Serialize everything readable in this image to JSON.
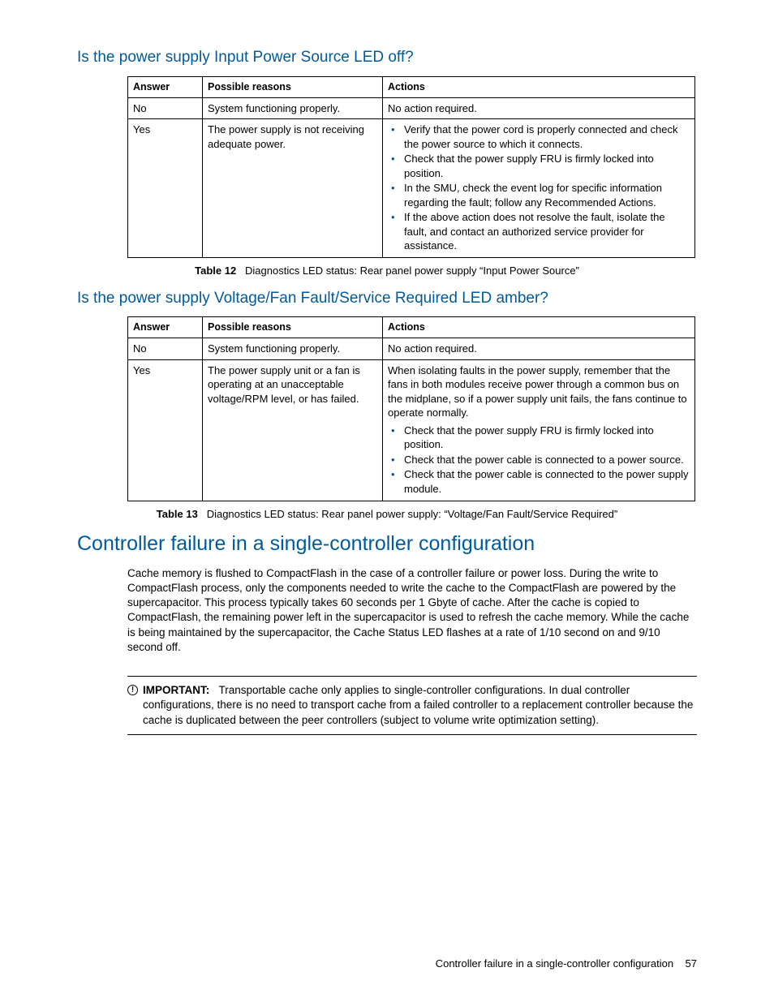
{
  "colors": {
    "heading": "#005a9c",
    "bullet": "#005a9c",
    "text": "#000000",
    "border": "#000000",
    "background": "#ffffff"
  },
  "section1": {
    "heading": "Is the power supply Input Power Source LED off?",
    "table": {
      "headers": [
        "Answer",
        "Possible reasons",
        "Actions"
      ],
      "rows": [
        {
          "answer": "No",
          "reasons": "System functioning properly.",
          "actions_text": "No action required."
        },
        {
          "answer": "Yes",
          "reasons": "The power supply is not receiving adequate power.",
          "actions_list": [
            "Verify that the power cord is properly connected and check the power source to which it connects.",
            "Check that the power supply FRU is firmly locked into position.",
            "In the SMU, check the event log for specific information regarding the fault; follow any Recommended Actions.",
            "If the above action does not resolve the fault, isolate the fault, and contact an authorized service provider for assistance."
          ]
        }
      ]
    },
    "caption_label": "Table 12",
    "caption_text": "Diagnostics LED status: Rear panel power supply “Input Power Source”"
  },
  "section2": {
    "heading": "Is the power supply Voltage/Fan Fault/Service Required LED amber?",
    "table": {
      "headers": [
        "Answer",
        "Possible reasons",
        "Actions"
      ],
      "rows": [
        {
          "answer": "No",
          "reasons": "System functioning properly.",
          "actions_text": "No action required."
        },
        {
          "answer": "Yes",
          "reasons": "The power supply unit or a fan is operating at an unacceptable voltage/RPM level, or has failed.",
          "actions_intro": "When isolating faults in the power supply, remember that the fans in both modules receive power through a common bus on the midplane, so if a power supply unit fails, the fans continue to operate normally.",
          "actions_list": [
            "Check that the power supply FRU is firmly locked into position.",
            "Check that the power cable is connected to a power source.",
            "Check that the power cable is connected to the power supply module."
          ]
        }
      ]
    },
    "caption_label": "Table 13",
    "caption_text": "Diagnostics LED status: Rear panel power supply: “Voltage/Fan Fault/Service Required”"
  },
  "section3": {
    "heading": "Controller failure in a single-controller configuration",
    "paragraph": "Cache memory is flushed to CompactFlash in the case of a controller failure or power loss. During the write to CompactFlash process, only the components needed to write the cache to the CompactFlash are powered by the supercapacitor. This process typically takes 60 seconds per 1 Gbyte of cache. After the cache is copied to CompactFlash, the remaining power left in the supercapacitor is used to refresh the cache memory. While the cache is being maintained by the supercapacitor, the Cache Status LED flashes at a rate of 1/10 second on and 9/10 second off.",
    "important_label": "IMPORTANT:",
    "important_text": "Transportable cache only applies to single-controller configurations. In dual controller configurations, there is no need to transport cache from a failed controller to a replacement controller because the cache is duplicated between the peer controllers (subject to volume write optimization setting)."
  },
  "footer": {
    "text": "Controller failure in a single-controller configuration",
    "page": "57"
  }
}
